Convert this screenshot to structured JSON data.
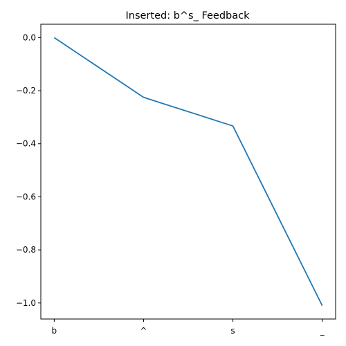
{
  "chart_data": {
    "type": "line",
    "title": "Inserted: b^s_    Feedback",
    "xlabel": "",
    "ylabel": "",
    "categories": [
      "b",
      "^",
      "s",
      "_"
    ],
    "series": [
      {
        "values": [
          0.0,
          -0.225,
          -0.333,
          -1.01
        ],
        "color": "#1f77b4"
      }
    ],
    "yticks": [
      0.0,
      -0.2,
      -0.4,
      -0.6,
      -0.8,
      -1.0
    ],
    "ytick_labels": [
      "0.0",
      "−0.2",
      "−0.4",
      "−0.6",
      "−0.8",
      "−1.0"
    ],
    "ylim": [
      -1.0605,
      0.0505
    ],
    "grid": false,
    "legend": "none"
  }
}
